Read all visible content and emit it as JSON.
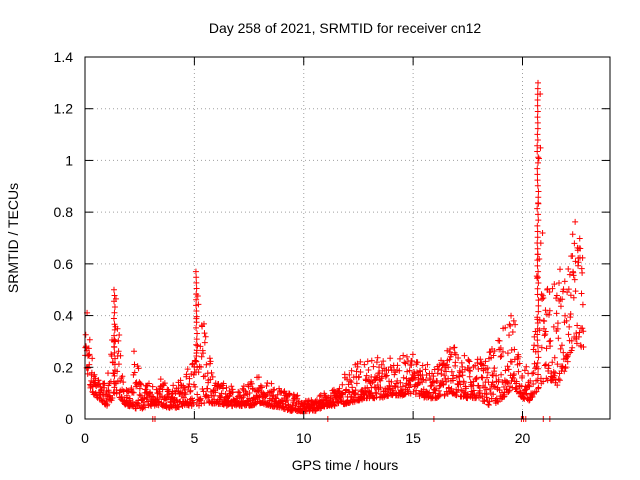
{
  "chart_data": {
    "type": "scatter",
    "title": "Day 258 of 2021, SRMTID for receiver cn12",
    "xlabel": "GPS time / hours",
    "ylabel": "SRMTID / TECUs",
    "xlim": [
      0,
      24
    ],
    "ylim": [
      0,
      1.4
    ],
    "x_ticks": [
      0,
      5,
      10,
      15,
      20
    ],
    "x_tick_labels": [
      "0",
      "5",
      "10",
      "15",
      "20"
    ],
    "y_ticks": [
      0,
      0.2,
      0.4,
      0.6,
      0.8,
      1.0,
      1.2,
      1.4
    ],
    "y_tick_labels": [
      "0",
      "0.2",
      "0.4",
      "0.6",
      "0.8",
      "1",
      "1.2",
      "1.4"
    ],
    "grid": true,
    "marker": "+",
    "series_color": "#ff0000",
    "envelope": {
      "x": [
        0.0,
        0.1,
        0.3,
        0.6,
        1.0,
        1.4,
        1.7,
        2.0,
        2.3,
        2.6,
        3.0,
        3.5,
        4.0,
        4.5,
        5.0,
        5.2,
        5.5,
        6.0,
        6.5,
        7.0,
        7.5,
        8.0,
        8.5,
        9.0,
        9.5,
        10.0,
        10.5,
        11.0,
        11.5,
        12.0,
        12.5,
        13.0,
        13.5,
        14.0,
        14.5,
        15.0,
        15.5,
        16.0,
        16.5,
        17.0,
        17.5,
        18.0,
        18.5,
        19.0,
        19.3,
        19.6,
        20.0,
        20.3,
        20.6,
        20.8,
        21.0,
        21.3,
        21.6,
        22.0,
        22.3,
        22.6,
        22.8
      ],
      "low": [
        0.25,
        0.18,
        0.1,
        0.08,
        0.05,
        0.09,
        0.06,
        0.05,
        0.04,
        0.04,
        0.05,
        0.05,
        0.04,
        0.05,
        0.05,
        0.05,
        0.06,
        0.06,
        0.05,
        0.05,
        0.05,
        0.06,
        0.05,
        0.04,
        0.03,
        0.03,
        0.03,
        0.05,
        0.05,
        0.06,
        0.07,
        0.08,
        0.08,
        0.09,
        0.09,
        0.1,
        0.08,
        0.08,
        0.09,
        0.09,
        0.08,
        0.08,
        0.05,
        0.07,
        0.1,
        0.12,
        0.08,
        0.07,
        0.1,
        0.13,
        0.15,
        0.15,
        0.13,
        0.2,
        0.28,
        0.3,
        0.25
      ],
      "high": [
        0.35,
        0.42,
        0.25,
        0.15,
        0.16,
        0.5,
        0.18,
        0.12,
        0.3,
        0.13,
        0.14,
        0.16,
        0.13,
        0.16,
        0.25,
        0.57,
        0.35,
        0.16,
        0.14,
        0.12,
        0.14,
        0.17,
        0.14,
        0.11,
        0.1,
        0.08,
        0.07,
        0.11,
        0.13,
        0.19,
        0.22,
        0.26,
        0.23,
        0.24,
        0.26,
        0.26,
        0.22,
        0.2,
        0.27,
        0.28,
        0.23,
        0.24,
        0.26,
        0.36,
        0.4,
        0.42,
        0.22,
        0.2,
        0.35,
        1.3,
        0.6,
        0.5,
        0.6,
        0.55,
        0.77,
        0.75,
        0.6
      ]
    },
    "spikes": [
      {
        "x": 20.7,
        "y_from": 0.15,
        "y_to": 1.3
      },
      {
        "x": 5.1,
        "y_from": 0.2,
        "y_to": 0.57
      },
      {
        "x": 1.35,
        "y_from": 0.1,
        "y_to": 0.5
      }
    ],
    "zero_points_x": [
      3.1,
      3.2,
      11.1,
      15.95,
      19.95,
      20.05,
      20.15,
      20.95,
      21.25
    ]
  }
}
